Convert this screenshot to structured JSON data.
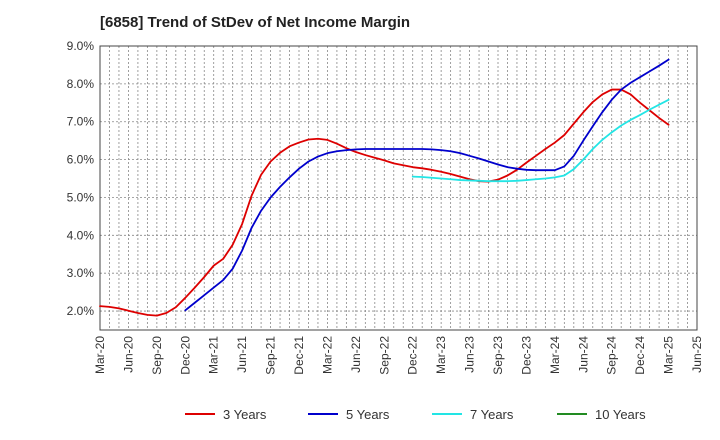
{
  "chart_data": {
    "type": "line",
    "title": "[6858]  Trend of StDev of Net Income Margin",
    "xlabel": "",
    "ylabel": "",
    "x_ticks": [
      "Mar-20",
      "Jun-20",
      "Sep-20",
      "Dec-20",
      "Mar-21",
      "Jun-21",
      "Sep-21",
      "Dec-21",
      "Mar-22",
      "Jun-22",
      "Sep-22",
      "Dec-22",
      "Mar-23",
      "Jun-23",
      "Sep-23",
      "Dec-23",
      "Mar-24",
      "Jun-24",
      "Sep-24",
      "Dec-24",
      "Mar-25",
      "Jun-25"
    ],
    "y_ticks": [
      "2.0%",
      "3.0%",
      "4.0%",
      "5.0%",
      "6.0%",
      "7.0%",
      "8.0%",
      "9.0%"
    ],
    "ylim": [
      1.5,
      9.0
    ],
    "grid": true,
    "legend_position": "bottom",
    "series": [
      {
        "name": "3 Years",
        "color": "#dd0000",
        "x": [
          "Mar-20",
          "Apr-20",
          "May-20",
          "Jun-20",
          "Jul-20",
          "Aug-20",
          "Sep-20",
          "Oct-20",
          "Nov-20",
          "Dec-20",
          "Jan-21",
          "Feb-21",
          "Mar-21",
          "Apr-21",
          "May-21",
          "Jun-21",
          "Jul-21",
          "Aug-21",
          "Sep-21",
          "Oct-21",
          "Nov-21",
          "Dec-21",
          "Jan-22",
          "Feb-22",
          "Mar-22",
          "Apr-22",
          "May-22",
          "Jun-22",
          "Jul-22",
          "Aug-22",
          "Sep-22",
          "Oct-22",
          "Nov-22",
          "Dec-22",
          "Jan-23",
          "Feb-23",
          "Mar-23",
          "Apr-23",
          "May-23",
          "Jun-23",
          "Jul-23",
          "Aug-23",
          "Sep-23",
          "Oct-23",
          "Nov-23",
          "Dec-23",
          "Jan-24",
          "Feb-24",
          "Mar-24",
          "Apr-24",
          "May-24",
          "Jun-24",
          "Jul-24",
          "Aug-24",
          "Sep-24",
          "Oct-24",
          "Nov-24",
          "Dec-24",
          "Jan-25",
          "Feb-25",
          "Mar-25"
        ],
        "values": [
          2.13,
          2.11,
          2.07,
          2.01,
          1.95,
          1.9,
          1.88,
          1.95,
          2.1,
          2.35,
          2.62,
          2.9,
          3.2,
          3.38,
          3.75,
          4.3,
          5.05,
          5.6,
          5.95,
          6.18,
          6.35,
          6.45,
          6.53,
          6.55,
          6.52,
          6.42,
          6.3,
          6.2,
          6.12,
          6.05,
          5.98,
          5.9,
          5.85,
          5.8,
          5.77,
          5.73,
          5.68,
          5.62,
          5.55,
          5.48,
          5.43,
          5.42,
          5.47,
          5.58,
          5.73,
          5.92,
          6.1,
          6.28,
          6.45,
          6.65,
          6.95,
          7.25,
          7.52,
          7.72,
          7.85,
          7.85,
          7.72,
          7.5,
          7.3,
          7.1,
          6.92
        ]
      },
      {
        "name": "5 Years",
        "color": "#0000cc",
        "x": [
          "Dec-20",
          "Jan-21",
          "Feb-21",
          "Mar-21",
          "Apr-21",
          "May-21",
          "Jun-21",
          "Jul-21",
          "Aug-21",
          "Sep-21",
          "Oct-21",
          "Nov-21",
          "Dec-21",
          "Jan-22",
          "Feb-22",
          "Mar-22",
          "Apr-22",
          "May-22",
          "Jun-22",
          "Jul-22",
          "Aug-22",
          "Sep-22",
          "Oct-22",
          "Nov-22",
          "Dec-22",
          "Jan-23",
          "Feb-23",
          "Mar-23",
          "Apr-23",
          "May-23",
          "Jun-23",
          "Jul-23",
          "Aug-23",
          "Sep-23",
          "Oct-23",
          "Nov-23",
          "Dec-23",
          "Jan-24",
          "Feb-24",
          "Mar-24",
          "Apr-24",
          "May-24",
          "Jun-24",
          "Jul-24",
          "Aug-24",
          "Sep-24",
          "Oct-24",
          "Nov-24",
          "Dec-24",
          "Jan-25",
          "Feb-25",
          "Mar-25"
        ],
        "values": [
          2.02,
          2.22,
          2.42,
          2.62,
          2.82,
          3.12,
          3.6,
          4.2,
          4.65,
          5.0,
          5.28,
          5.53,
          5.76,
          5.95,
          6.08,
          6.17,
          6.22,
          6.25,
          6.27,
          6.28,
          6.28,
          6.28,
          6.28,
          6.28,
          6.28,
          6.28,
          6.27,
          6.25,
          6.22,
          6.17,
          6.1,
          6.03,
          5.95,
          5.87,
          5.8,
          5.76,
          5.73,
          5.72,
          5.72,
          5.72,
          5.82,
          6.1,
          6.5,
          6.88,
          7.25,
          7.58,
          7.85,
          8.03,
          8.18,
          8.33,
          8.48,
          8.64
        ]
      },
      {
        "name": "7 Years",
        "color": "#22e5e5",
        "x": [
          "Dec-22",
          "Jan-23",
          "Feb-23",
          "Mar-23",
          "Apr-23",
          "May-23",
          "Jun-23",
          "Jul-23",
          "Aug-23",
          "Sep-23",
          "Oct-23",
          "Nov-23",
          "Dec-23",
          "Jan-24",
          "Feb-24",
          "Mar-24",
          "Apr-24",
          "May-24",
          "Jun-24",
          "Jul-24",
          "Aug-24",
          "Sep-24",
          "Oct-24",
          "Nov-24",
          "Dec-24",
          "Jan-25",
          "Feb-25",
          "Mar-25"
        ],
        "values": [
          5.55,
          5.54,
          5.52,
          5.5,
          5.48,
          5.46,
          5.45,
          5.44,
          5.43,
          5.43,
          5.43,
          5.44,
          5.46,
          5.48,
          5.5,
          5.53,
          5.58,
          5.75,
          6.0,
          6.28,
          6.52,
          6.72,
          6.9,
          7.05,
          7.18,
          7.32,
          7.45,
          7.58
        ]
      },
      {
        "name": "10 Years",
        "color": "#228b22",
        "x": [],
        "values": []
      }
    ]
  }
}
